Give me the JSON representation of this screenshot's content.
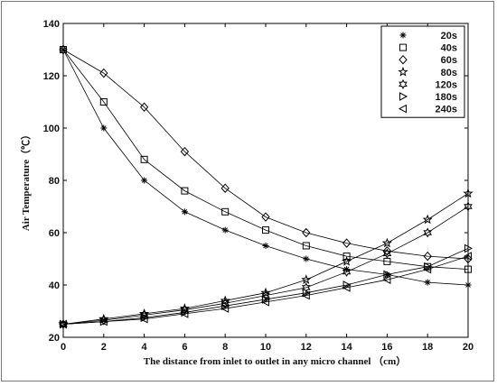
{
  "chart_data": {
    "type": "line",
    "title": "",
    "xlabel": "The distance from inlet to outlet in any micro channel （cm）",
    "ylabel": "Air Temperature（℃）",
    "xlim": [
      0,
      20
    ],
    "ylim": [
      20,
      140
    ],
    "xticks": [
      "0",
      "2",
      "4",
      "6",
      "8",
      "10",
      "12",
      "14",
      "16",
      "18",
      "20"
    ],
    "yticks": [
      "20",
      "40",
      "60",
      "80",
      "100",
      "120",
      "140"
    ],
    "grid": false,
    "legend_position": "top-right",
    "x": [
      0,
      2,
      4,
      6,
      8,
      10,
      12,
      14,
      16,
      18,
      20
    ],
    "series": [
      {
        "name": "20s",
        "marker": "asterisk",
        "values": [
          130,
          100,
          80,
          68,
          61,
          55,
          50,
          46,
          44,
          41,
          40
        ]
      },
      {
        "name": "40s",
        "marker": "square",
        "values": [
          130,
          110,
          88,
          76,
          68,
          61,
          55,
          51,
          49,
          47,
          46
        ]
      },
      {
        "name": "60s",
        "marker": "diamond",
        "values": [
          130,
          121,
          108,
          91,
          77,
          66,
          60,
          56,
          53,
          51,
          50
        ]
      },
      {
        "name": "80s",
        "marker": "pentagram",
        "values": [
          25,
          27,
          29,
          31,
          34,
          37,
          42,
          49,
          56,
          65,
          75
        ]
      },
      {
        "name": "120s",
        "marker": "hexagram",
        "values": [
          25,
          26.5,
          28.5,
          30.5,
          33,
          36,
          39,
          45,
          52,
          60,
          70
        ]
      },
      {
        "name": "180s",
        "marker": "triangle-right",
        "values": [
          25,
          26,
          27.5,
          29.5,
          32,
          34.5,
          37,
          40,
          44,
          47,
          54
        ]
      },
      {
        "name": "240s",
        "marker": "triangle-left",
        "values": [
          25,
          26,
          27,
          29,
          31,
          33.5,
          36,
          39,
          42,
          46,
          51
        ]
      }
    ]
  }
}
